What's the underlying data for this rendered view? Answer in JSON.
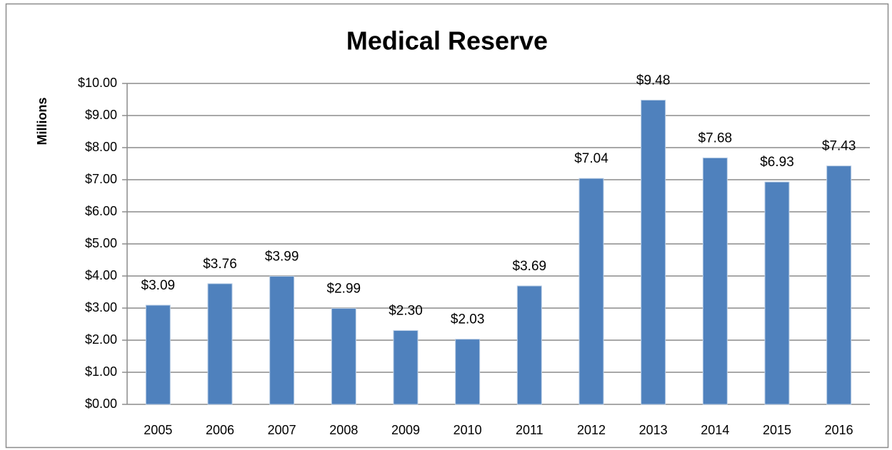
{
  "chart_data": {
    "type": "bar",
    "title": "Medical Reserve",
    "y_axis_label": "Millions",
    "categories": [
      "2005",
      "2006",
      "2007",
      "2008",
      "2009",
      "2010",
      "2011",
      "2012",
      "2013",
      "2014",
      "2015",
      "2016"
    ],
    "values": [
      3.09,
      3.76,
      3.99,
      2.99,
      2.3,
      2.03,
      3.69,
      7.04,
      9.48,
      7.68,
      6.93,
      7.43
    ],
    "value_labels": [
      "$3.09",
      "$3.76",
      "$3.99",
      "$2.99",
      "$2.30",
      "$2.03",
      "$3.69",
      "$7.04",
      "$9.48",
      "$7.68",
      "$6.93",
      "$7.43"
    ],
    "color": "#4f81bd",
    "ylim": [
      0,
      10
    ],
    "yticks": [
      {
        "value": 0,
        "label": "$0.00"
      },
      {
        "value": 1,
        "label": "$1.00"
      },
      {
        "value": 2,
        "label": "$2.00"
      },
      {
        "value": 3,
        "label": "$3.00"
      },
      {
        "value": 4,
        "label": "$4.00"
      },
      {
        "value": 5,
        "label": "$5.00"
      },
      {
        "value": 6,
        "label": "$6.00"
      },
      {
        "value": 7,
        "label": "$7.00"
      },
      {
        "value": 8,
        "label": "$8.00"
      },
      {
        "value": 9,
        "label": "$9.00"
      },
      {
        "value": 10,
        "label": "$10.00"
      }
    ],
    "grid": true
  }
}
